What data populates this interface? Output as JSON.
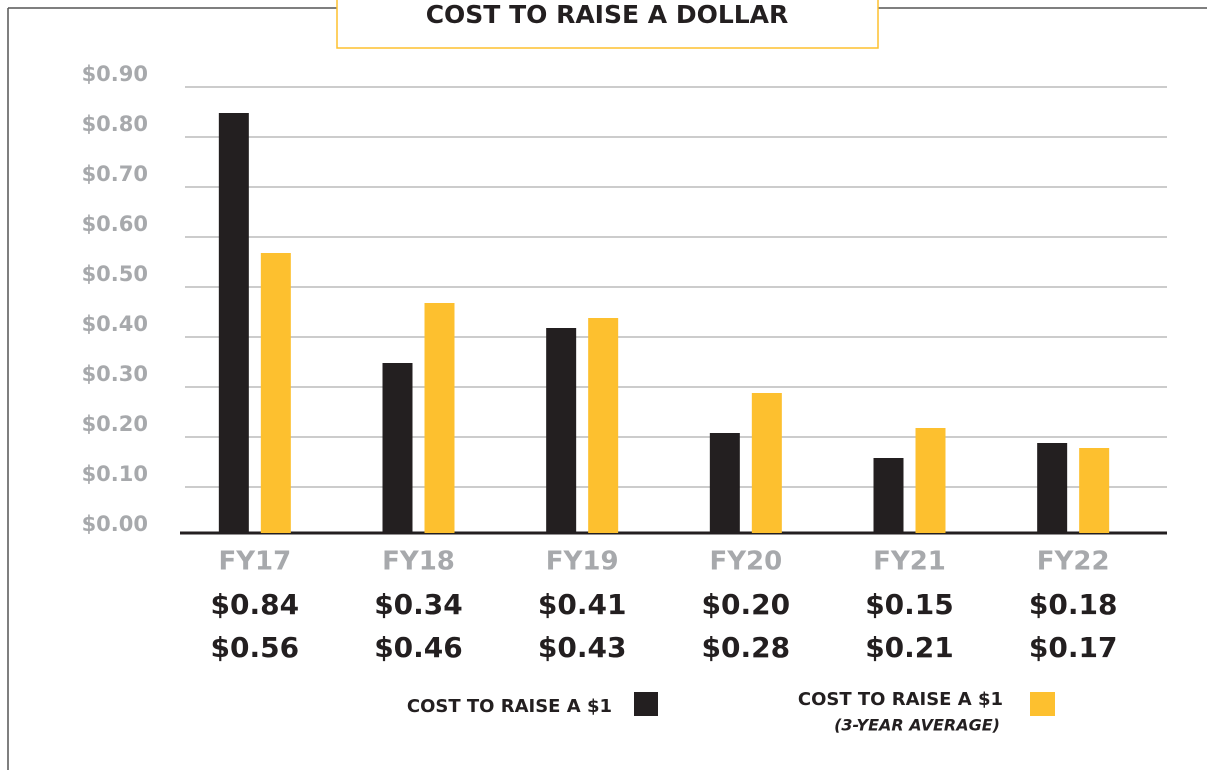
{
  "chart_data": {
    "type": "bar",
    "title": "COST TO RAISE A DOLLAR",
    "categories": [
      "FY17",
      "FY18",
      "FY19",
      "FY20",
      "FY21",
      "FY22"
    ],
    "series": [
      {
        "name": "COST TO RAISE A $1",
        "color": "#231f20",
        "values": [
          0.84,
          0.34,
          0.41,
          0.2,
          0.15,
          0.18
        ],
        "value_labels": [
          "$0.84",
          "$0.34",
          "$0.41",
          "$0.20",
          "$0.15",
          "$0.18"
        ]
      },
      {
        "name": "COST TO RAISE A $1",
        "subtitle": "(3-YEAR AVERAGE)",
        "color": "#fdc02f",
        "values": [
          0.56,
          0.46,
          0.43,
          0.28,
          0.21,
          0.17
        ],
        "value_labels": [
          "$0.56",
          "$0.46",
          "$0.43",
          "$0.28",
          "$0.21",
          "$0.17"
        ]
      }
    ],
    "ylim": [
      0,
      0.9
    ],
    "yticks": [
      {
        "value": 0,
        "label": "$0.00"
      },
      {
        "value": 0.1,
        "label": "$0.10"
      },
      {
        "value": 0.2,
        "label": "$0.20"
      },
      {
        "value": 0.3,
        "label": "$0.30"
      },
      {
        "value": 0.4,
        "label": "$0.40"
      },
      {
        "value": 0.5,
        "label": "$0.50"
      },
      {
        "value": 0.6,
        "label": "$0.60"
      },
      {
        "value": 0.7,
        "label": "$0.70"
      },
      {
        "value": 0.8,
        "label": "$0.80"
      },
      {
        "value": 0.9,
        "label": "$0.90"
      }
    ],
    "grid": true
  }
}
